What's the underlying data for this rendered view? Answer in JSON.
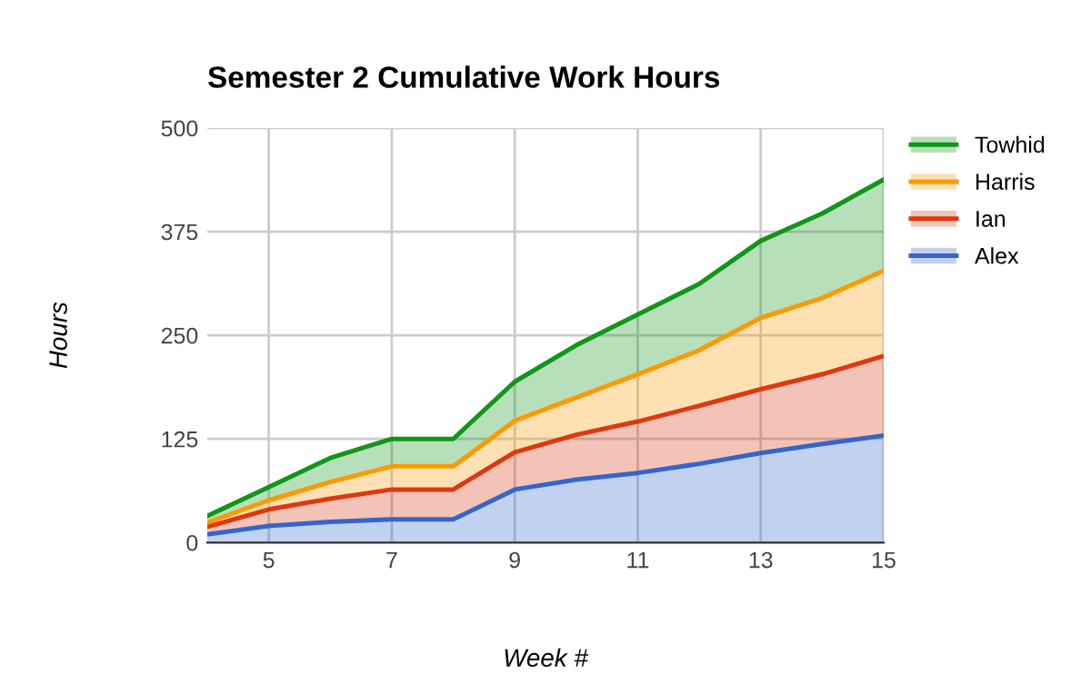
{
  "chart_data": {
    "type": "area",
    "stacked": true,
    "title": "Semester 2 Cumulative Work Hours",
    "xlabel": "Week #",
    "ylabel": "Hours",
    "x": [
      4,
      5,
      6,
      7,
      8,
      9,
      10,
      11,
      12,
      13,
      14,
      15
    ],
    "xlim": [
      4,
      15
    ],
    "xticks": [
      5,
      7,
      9,
      11,
      13,
      15
    ],
    "ylim": [
      0,
      500
    ],
    "yticks": [
      0,
      125,
      250,
      375,
      500
    ],
    "grid": true,
    "legend": "top right",
    "series": [
      {
        "name": "Alex",
        "color": "#3366cc",
        "values": [
          10,
          20,
          25,
          28,
          28,
          64,
          76,
          84,
          95,
          108,
          119,
          129
        ]
      },
      {
        "name": "Ian",
        "color": "#dc3912",
        "values": [
          9,
          20,
          28,
          36,
          36,
          45,
          54,
          62,
          70,
          77,
          84,
          96
        ]
      },
      {
        "name": "Harris",
        "color": "#ff9900",
        "values": [
          5,
          11,
          20,
          28,
          28,
          38,
          45,
          57,
          67,
          86,
          92,
          103
        ]
      },
      {
        "name": "Towhid",
        "color": "#109618",
        "values": [
          8,
          16,
          29,
          33,
          33,
          47,
          63,
          72,
          80,
          93,
          102,
          110
        ]
      }
    ]
  }
}
